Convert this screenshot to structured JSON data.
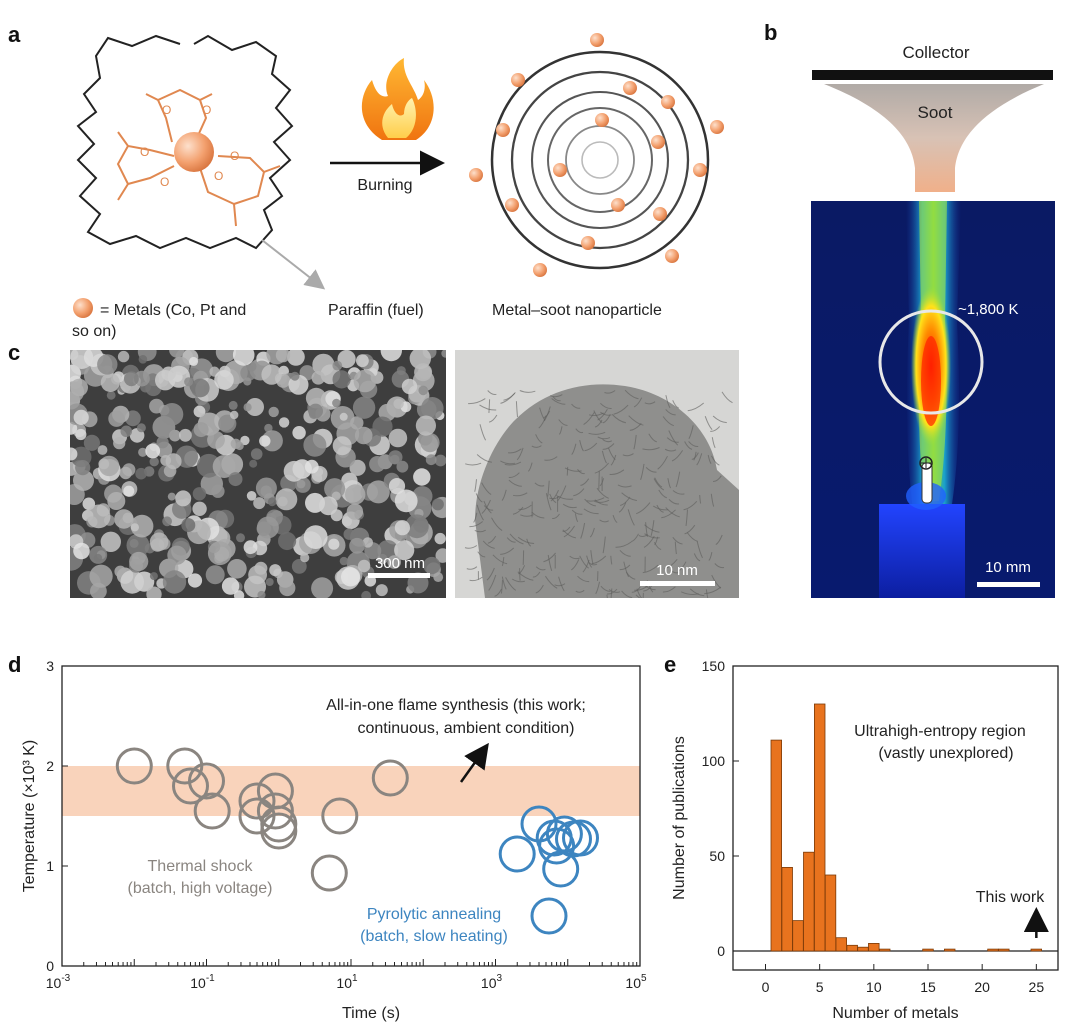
{
  "panel_labels": {
    "a": "a",
    "b": "b",
    "c": "c",
    "d": "d",
    "e": "e"
  },
  "panel_a": {
    "arrow_label": "Burning",
    "legend_metal_line1": "= Metals (Co, Pt and",
    "legend_metal_line2": "so on)",
    "fuel_label": "Paraffin (fuel)",
    "product_label": "Metal–soot nanoparticle"
  },
  "panel_b": {
    "collector_label": "Collector",
    "soot_label": "Soot",
    "temperature_label": "~1,800 K",
    "scalebar_label": "10 mm"
  },
  "panel_c": {
    "sem_scalebar_label": "300 nm",
    "tem_scalebar_label": "10 nm"
  },
  "colors": {
    "metal_orange": "#f0a070",
    "ligand_orange": "#e08850",
    "band_peach": "#f9d3bb",
    "thermal_gray": "#8a8580",
    "pyrolytic_blue": "#3d85c0",
    "bar_orange": "#e8731e",
    "flame_bg": "#0a1f6e"
  },
  "chart_data": [
    {
      "type": "scatter",
      "panel": "d",
      "xlabel": "Time (s)",
      "ylabel": "Temperature (×10³ K)",
      "xscale": "log",
      "xlim": [
        0.001,
        100000
      ],
      "ylim": [
        0,
        3
      ],
      "xticks": [
        {
          "value": 0.001,
          "base": "10",
          "exp": "-3"
        },
        {
          "value": 0.1,
          "base": "10",
          "exp": "-1"
        },
        {
          "value": 10,
          "base": "10",
          "exp": "1"
        },
        {
          "value": 1000,
          "base": "10",
          "exp": "3"
        },
        {
          "value": 100000,
          "base": "10",
          "exp": "5"
        }
      ],
      "yticks": [
        "0",
        "1",
        "2",
        "3"
      ],
      "band": {
        "y_from": 1.5,
        "y_to": 2.0
      },
      "annotations": [
        {
          "key": "flame",
          "line1": "All-in-one flame synthesis (this work;",
          "line2": "continuous, ambient condition)"
        },
        {
          "key": "thermal",
          "line1": "Thermal shock",
          "line2": "(batch, high voltage)"
        },
        {
          "key": "pyrolytic",
          "line1": "Pyrolytic annealing",
          "line2": "(batch, slow heating)"
        }
      ],
      "series": [
        {
          "key": "thermal_shock",
          "points": [
            [
              0.01,
              2.0
            ],
            [
              0.05,
              2.0
            ],
            [
              0.06,
              1.8
            ],
            [
              0.1,
              1.85
            ],
            [
              0.12,
              1.55
            ],
            [
              0.5,
              1.65
            ],
            [
              0.5,
              1.5
            ],
            [
              0.9,
              1.75
            ],
            [
              0.9,
              1.55
            ],
            [
              1.0,
              1.42
            ],
            [
              1.0,
              1.35
            ],
            [
              5.0,
              0.93
            ],
            [
              7.0,
              1.5
            ],
            [
              35.0,
              1.88
            ]
          ]
        },
        {
          "key": "pyrolytic_annealing",
          "points": [
            [
              2000,
              1.12
            ],
            [
              4000,
              1.42
            ],
            [
              5500,
              0.5
            ],
            [
              6500,
              1.28
            ],
            [
              7000,
              1.2
            ],
            [
              8000,
              0.97
            ],
            [
              9000,
              1.32
            ],
            [
              12000,
              1.27
            ],
            [
              15000,
              1.28
            ]
          ]
        }
      ]
    },
    {
      "type": "bar",
      "panel": "e",
      "xlabel": "Number of metals",
      "ylabel": "Number of publications",
      "xlim": [
        -3,
        27
      ],
      "ylim": [
        -10,
        150
      ],
      "xticks": [
        "0",
        "5",
        "10",
        "15",
        "20",
        "25"
      ],
      "yticks": [
        "0",
        "50",
        "100",
        "150"
      ],
      "annotations": [
        {
          "key": "region",
          "line1": "Ultrahigh-entropy region",
          "line2": "(vastly unexplored)"
        },
        {
          "key": "this_work",
          "line1": "This work"
        }
      ],
      "categories": [
        1,
        2,
        3,
        4,
        5,
        6,
        7,
        8,
        9,
        10,
        11,
        15,
        17,
        21,
        22,
        25
      ],
      "values": [
        111,
        44,
        16,
        52,
        130,
        40,
        7,
        3,
        2,
        4,
        1,
        1,
        1,
        1,
        1,
        1
      ]
    }
  ]
}
